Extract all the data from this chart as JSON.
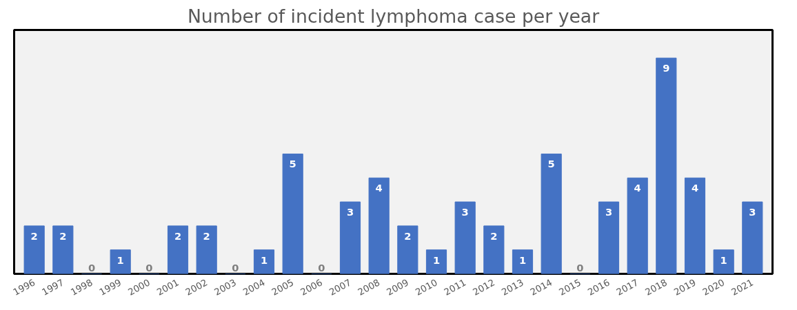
{
  "chart_data": {
    "type": "bar",
    "title": "Number of incident lymphoma case per year",
    "categories": [
      "1996",
      "1997",
      "1998",
      "1999",
      "2000",
      "2001",
      "2002",
      "2003",
      "2004",
      "2005",
      "2006",
      "2007",
      "2008",
      "2009",
      "2010",
      "2011",
      "2012",
      "2013",
      "2014",
      "2015",
      "2016",
      "2017",
      "2018",
      "2019",
      "2020",
      "2021"
    ],
    "values": [
      2,
      2,
      0,
      1,
      0,
      2,
      2,
      0,
      1,
      5,
      0,
      3,
      4,
      2,
      1,
      3,
      2,
      1,
      5,
      0,
      3,
      4,
      9,
      4,
      1,
      3
    ],
    "color": "#4472c4",
    "data_labels": true,
    "tick_labels": "x"
  }
}
